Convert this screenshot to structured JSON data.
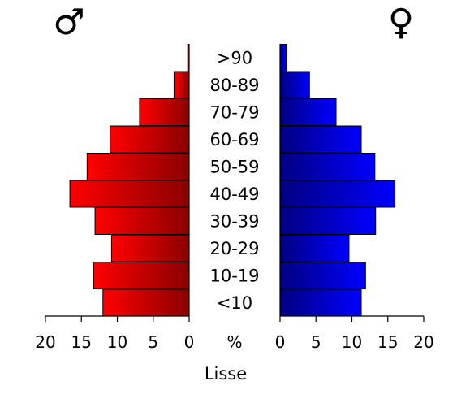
{
  "chart_data": {
    "type": "bar",
    "orientation": "horizontal",
    "layout": "population-pyramid",
    "categories": [
      "<10",
      "10-19",
      "20-29",
      "30-39",
      "40-49",
      "50-59",
      "60-69",
      "70-79",
      "80-89",
      ">90"
    ],
    "series": [
      {
        "name": "♂",
        "side": "left",
        "color": "#e0000f",
        "values": [
          12.0,
          13.3,
          10.8,
          13.1,
          16.6,
          14.2,
          11.0,
          6.9,
          2.1,
          0.2
        ]
      },
      {
        "name": "♀",
        "side": "right",
        "color": "#0000cc",
        "values": [
          11.3,
          11.9,
          9.6,
          13.3,
          16.0,
          13.2,
          11.3,
          7.8,
          4.1,
          0.9
        ]
      }
    ],
    "axis_ticks": [
      "20",
      "15",
      "10",
      "5",
      "0"
    ],
    "axis_unit": "%",
    "xlabel": "Lisse",
    "xlim": [
      0,
      20
    ],
    "legend": "symbols at top-left (♂) and top-right (♀)",
    "grid": false
  }
}
